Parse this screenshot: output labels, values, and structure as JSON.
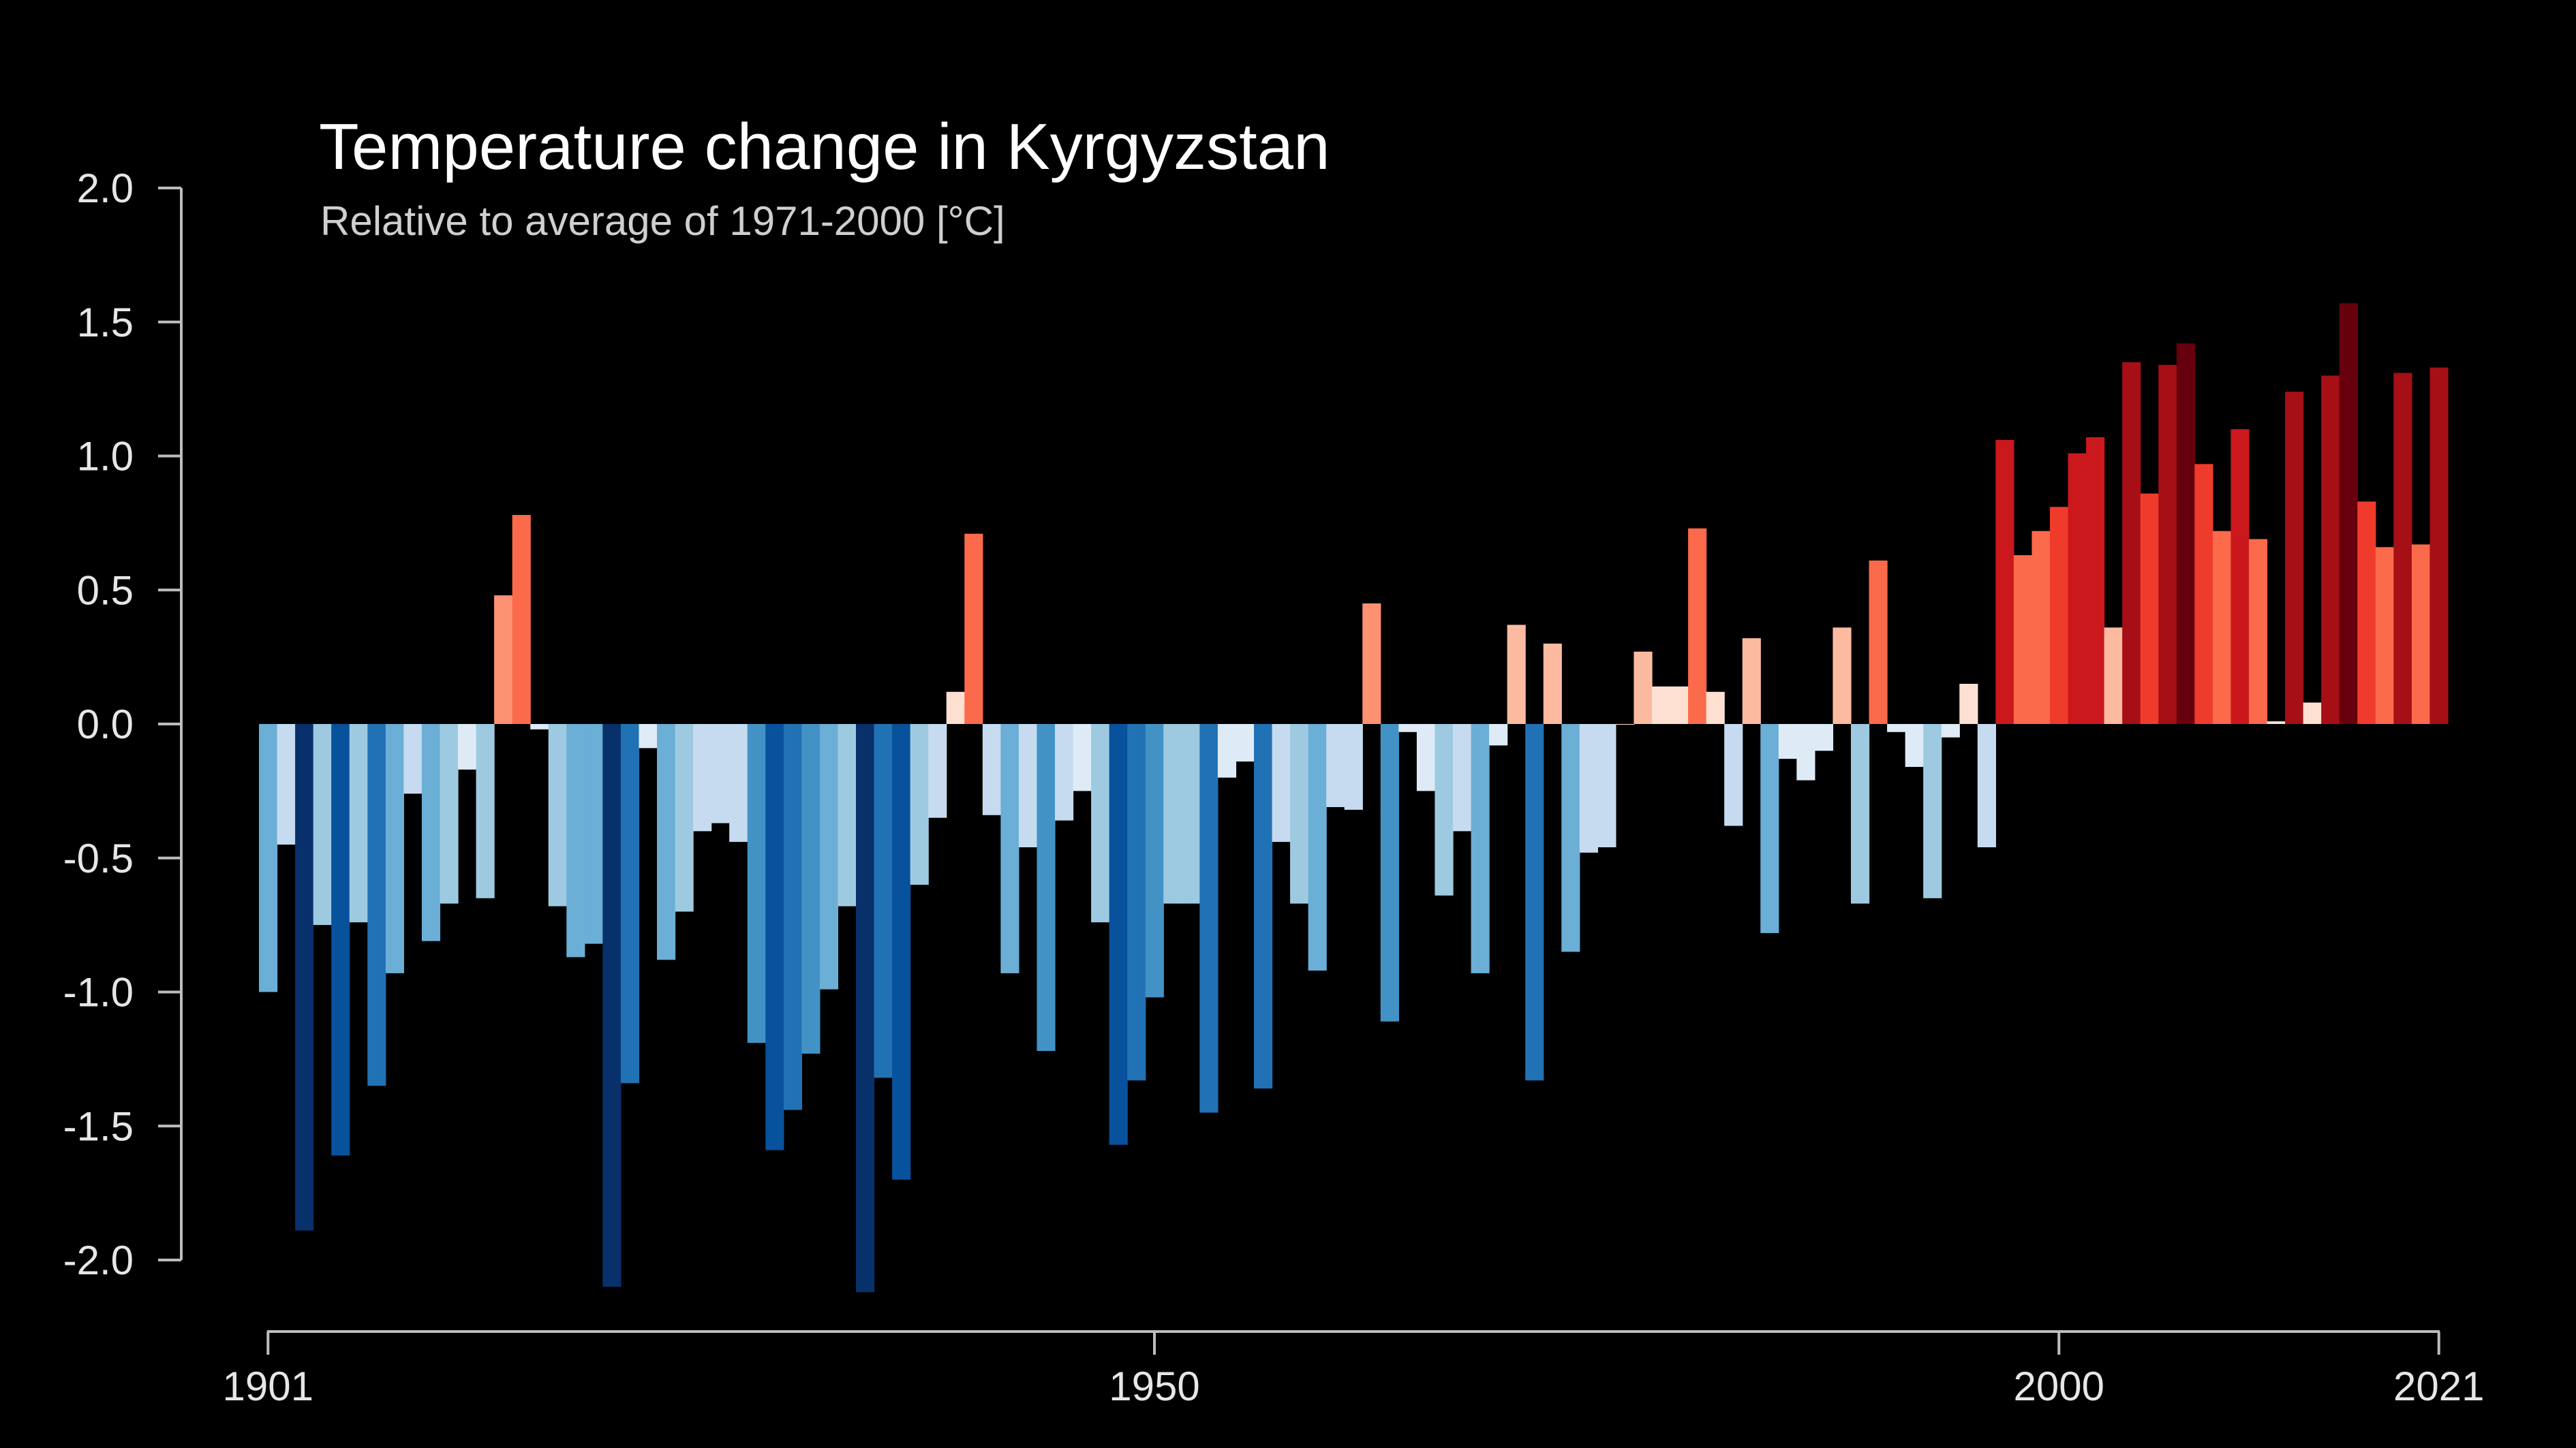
{
  "chart_data": {
    "type": "bar",
    "title": "Temperature change in Kyrgyzstan",
    "subtitle": "Relative to average of 1971-2000  [°C]",
    "xlabel": "",
    "ylabel": "",
    "x_start": 1901,
    "x_end": 2021,
    "ylim": [
      -2.0,
      2.0
    ],
    "y_ticks": [
      "2.0",
      "1.5",
      "1.0",
      "0.5",
      "0.0",
      "-0.5",
      "-1.0",
      "-1.5",
      "-2.0"
    ],
    "x_ticks": [
      "1901",
      "1950",
      "2000",
      "2021"
    ],
    "grid": false,
    "legend": "none",
    "palette": {
      "neg": [
        "#08306b",
        "#08519c",
        "#2171b5",
        "#4292c6",
        "#6baed6",
        "#9ecae1",
        "#c6dbef",
        "#deebf7"
      ],
      "pos": [
        "#fee0d2",
        "#fcbba1",
        "#fc9272",
        "#fb6a4a",
        "#ef3b2c",
        "#cb181d",
        "#a50f15",
        "#67000d"
      ]
    },
    "years": [
      1901,
      1902,
      1903,
      1904,
      1905,
      1906,
      1907,
      1908,
      1909,
      1910,
      1911,
      1912,
      1913,
      1914,
      1915,
      1916,
      1917,
      1918,
      1919,
      1920,
      1921,
      1922,
      1923,
      1924,
      1925,
      1926,
      1927,
      1928,
      1929,
      1930,
      1931,
      1932,
      1933,
      1934,
      1935,
      1936,
      1937,
      1938,
      1939,
      1940,
      1941,
      1942,
      1943,
      1944,
      1945,
      1946,
      1947,
      1948,
      1949,
      1950,
      1951,
      1952,
      1953,
      1954,
      1955,
      1956,
      1957,
      1958,
      1959,
      1960,
      1961,
      1962,
      1963,
      1964,
      1965,
      1966,
      1967,
      1968,
      1969,
      1970,
      1971,
      1972,
      1973,
      1974,
      1975,
      1976,
      1977,
      1978,
      1979,
      1980,
      1981,
      1982,
      1983,
      1984,
      1985,
      1986,
      1987,
      1988,
      1989,
      1990,
      1991,
      1992,
      1993,
      1994,
      1995,
      1996,
      1997,
      1998,
      1999,
      2000,
      2001,
      2002,
      2003,
      2004,
      2005,
      2006,
      2007,
      2008,
      2009,
      2010,
      2011,
      2012,
      2013,
      2014,
      2015,
      2016,
      2017,
      2018,
      2019,
      2020,
      2021
    ],
    "values": [
      -1.0,
      -0.45,
      -1.89,
      -0.75,
      -1.61,
      -0.74,
      -1.35,
      -0.93,
      -0.26,
      -0.81,
      -0.67,
      -0.17,
      -0.65,
      0.48,
      0.78,
      -0.02,
      -0.68,
      -0.87,
      -0.82,
      -2.1,
      -1.34,
      -0.09,
      -0.88,
      -0.7,
      -0.4,
      -0.37,
      -0.44,
      -1.19,
      -1.59,
      -1.44,
      -1.23,
      -0.99,
      -0.68,
      -2.12,
      -1.32,
      -1.7,
      -0.6,
      -0.35,
      0.12,
      0.71,
      -0.34,
      -0.93,
      -0.46,
      -1.22,
      -0.36,
      -0.25,
      -0.74,
      -1.57,
      -1.33,
      -1.02,
      -0.67,
      -0.67,
      -1.45,
      -0.2,
      -0.14,
      -1.36,
      -0.44,
      -0.67,
      -0.92,
      -0.31,
      -0.32,
      0.45,
      -1.11,
      -0.03,
      -0.25,
      -0.64,
      -0.4,
      -0.93,
      -0.08,
      0.37,
      -1.33,
      0.3,
      -0.85,
      -0.48,
      -0.46,
      0.0,
      0.27,
      0.14,
      0.14,
      0.73,
      0.12,
      -0.38,
      0.32,
      -0.78,
      -0.13,
      -0.21,
      -0.1,
      0.36,
      -0.67,
      0.61,
      -0.03,
      -0.16,
      -0.65,
      -0.05,
      0.15,
      -0.46,
      1.06,
      0.63,
      0.72,
      0.81,
      1.01,
      1.07,
      0.36,
      1.35,
      0.86,
      1.34,
      1.42,
      0.97,
      0.72,
      1.1,
      0.69,
      0.01,
      1.24,
      0.08,
      1.3,
      1.57,
      0.83,
      0.66,
      1.31,
      0.67,
      1.33
    ]
  }
}
